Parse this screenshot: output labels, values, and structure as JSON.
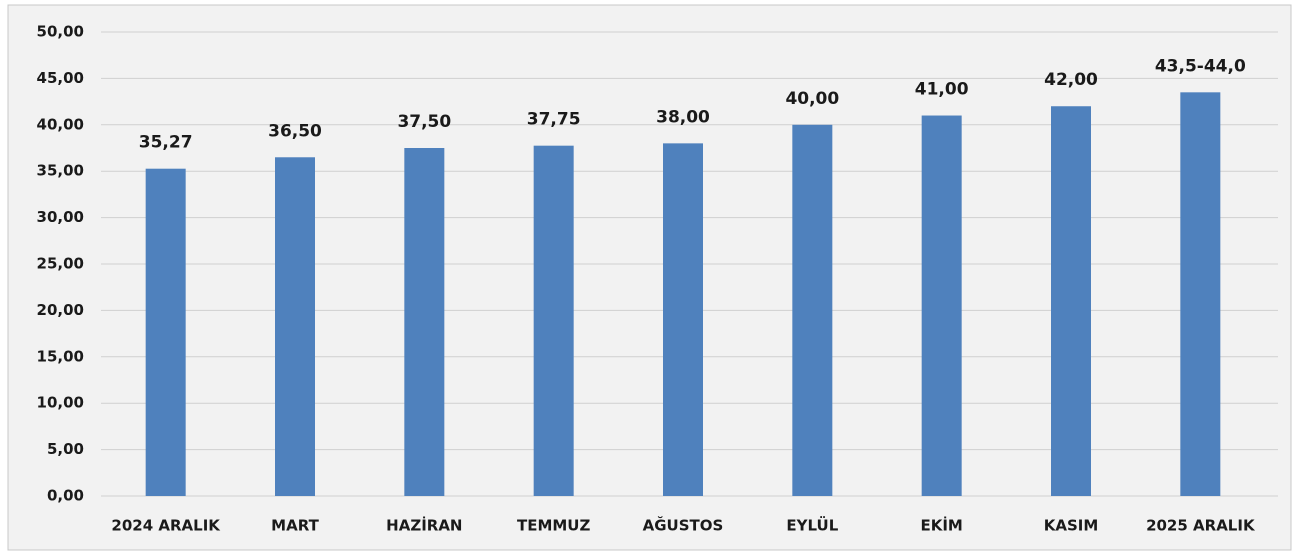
{
  "chart_data": {
    "type": "bar",
    "categories": [
      "2024 ARALIK",
      "MART",
      "HAZİRAN",
      "TEMMUZ",
      "AĞUSTOS",
      "EYLÜL",
      "EKİM",
      "KASIM",
      "2025 ARALIK"
    ],
    "values": [
      35.27,
      36.5,
      37.5,
      37.75,
      38,
      40,
      41,
      42,
      43.5
    ],
    "value_labels": [
      "35,27",
      "36,50",
      "37,50",
      "37,75",
      "38,00",
      "40,00",
      "41,00",
      "42,00",
      "43,5-44,0"
    ],
    "color": "#4f81bd",
    "ylim": [
      0,
      50
    ],
    "yticks": [
      {
        "value": 0,
        "label": "0,00"
      },
      {
        "value": 5,
        "label": "5,00"
      },
      {
        "value": 10,
        "label": "10,00"
      },
      {
        "value": 15,
        "label": "15,00"
      },
      {
        "value": 20,
        "label": "20,00"
      },
      {
        "value": 25,
        "label": "25,00"
      },
      {
        "value": 30,
        "label": "30,00"
      },
      {
        "value": 35,
        "label": "35,00"
      },
      {
        "value": 40,
        "label": "40,00"
      },
      {
        "value": 45,
        "label": "45,00"
      },
      {
        "value": 50,
        "label": "50,00"
      }
    ],
    "grid": true
  }
}
